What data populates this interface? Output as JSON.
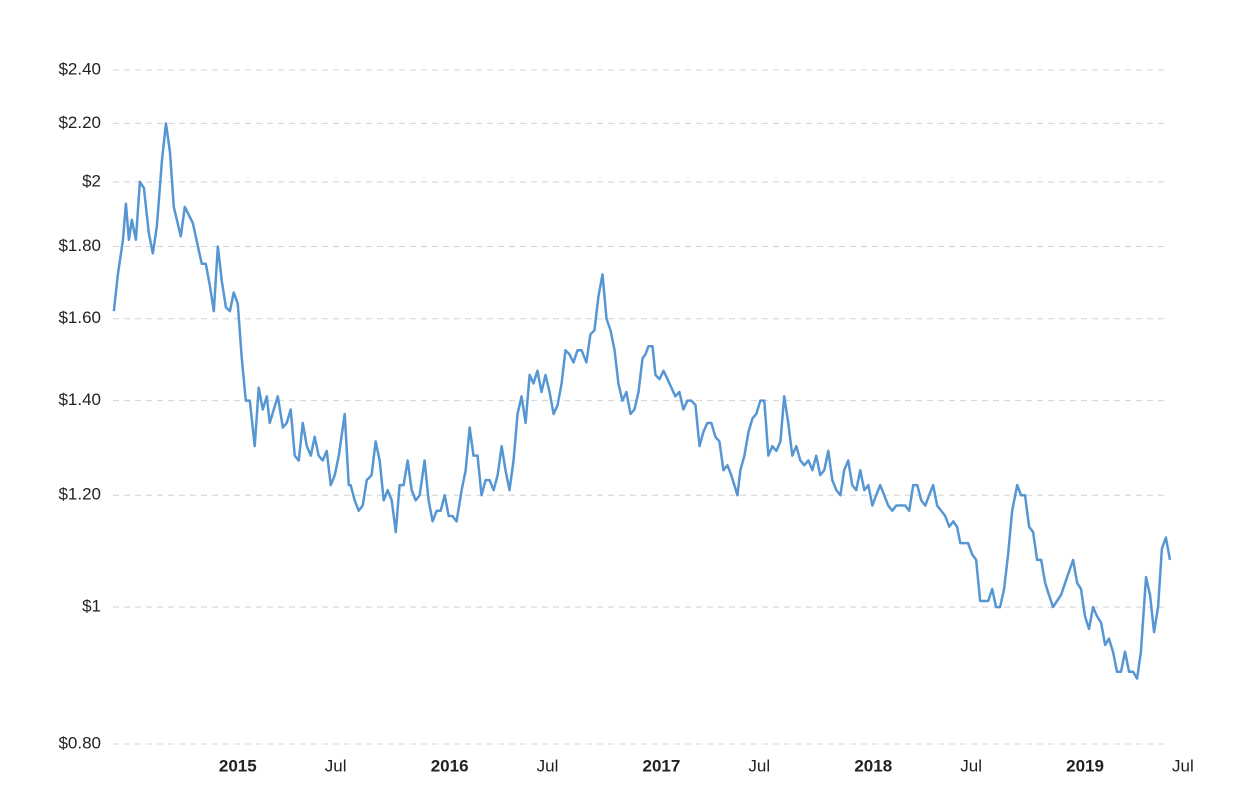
{
  "chart_data": {
    "type": "line",
    "yscale": "log",
    "grid": true,
    "ylim": [
      0.8,
      2.4
    ],
    "yticks": [
      {
        "value": 0.8,
        "label": "$0.80"
      },
      {
        "value": 1,
        "label": "$1"
      },
      {
        "value": 1.2,
        "label": "$1.20"
      },
      {
        "value": 1.4,
        "label": "$1.40"
      },
      {
        "value": 1.6,
        "label": "$1.60"
      },
      {
        "value": 1.8,
        "label": "$1.80"
      },
      {
        "value": 2,
        "label": "$2"
      },
      {
        "value": 2.2,
        "label": "$2.20"
      },
      {
        "value": 2.4,
        "label": "$2.40"
      }
    ],
    "xlim": [
      2014.5,
      2019.495
    ],
    "xticks": [
      2015,
      {
        "value": 2015.5,
        "label": "Jul"
      },
      2016,
      {
        "value": 2016.5,
        "label": "Jul"
      },
      2017,
      {
        "value": 2017.5,
        "label": "Jul"
      },
      2018,
      {
        "value": 2018.5,
        "label": "Jul"
      },
      2019,
      {
        "value": 2019.5,
        "label": "Jul"
      }
    ],
    "series": [
      {
        "color": "#5596d3",
        "x": [
          2014.504,
          2014.523,
          2014.547,
          2014.561,
          2014.575,
          2014.589,
          2014.608,
          2014.627,
          2014.646,
          2014.669,
          2014.688,
          2014.707,
          2014.731,
          2014.75,
          2014.769,
          2014.787,
          2014.82,
          2014.839,
          2014.877,
          2014.901,
          2014.919,
          2014.938,
          2014.957,
          2014.976,
          2014.995,
          2015.014,
          2015.033,
          2015.052,
          2015.07,
          2015.089,
          2015.108,
          2015.127,
          2015.146,
          2015.169,
          2015.188,
          2015.207,
          2015.226,
          2015.24,
          2015.259,
          2015.278,
          2015.302,
          2015.32,
          2015.339,
          2015.358,
          2015.377,
          2015.396,
          2015.415,
          2015.434,
          2015.452,
          2015.471,
          2015.49,
          2015.509,
          2015.528,
          2015.547,
          2015.566,
          2015.594,
          2015.613,
          2015.622,
          2015.641,
          2015.66,
          2015.679,
          2015.698,
          2015.721,
          2015.74,
          2015.759,
          2015.778,
          2015.797,
          2015.816,
          2015.835,
          2015.853,
          2015.872,
          2015.891,
          2015.91,
          2015.929,
          2015.948,
          2015.971,
          2015.99,
          2016.009,
          2016.028,
          2016.047,
          2016.066,
          2016.085,
          2016.103,
          2016.122,
          2016.146,
          2016.165,
          2016.184,
          2016.202,
          2016.221,
          2016.24,
          2016.259,
          2016.278,
          2016.297,
          2016.316,
          2016.335,
          2016.353,
          2016.372,
          2016.391,
          2016.41,
          2016.429,
          2016.448,
          2016.467,
          2016.485,
          2016.504,
          2016.523,
          2016.542,
          2016.561,
          2016.58,
          2016.599,
          2016.618,
          2016.636,
          2016.655,
          2016.674,
          2016.693,
          2016.712,
          2016.735,
          2016.754,
          2016.773,
          2016.792,
          2016.811,
          2016.83,
          2016.849,
          2016.868,
          2016.886,
          2016.905,
          2016.924,
          2016.943,
          2016.962,
          2016.981,
          2017.0,
          2017.014,
          2017.028,
          2017.047,
          2017.061,
          2017.08,
          2017.099,
          2017.118,
          2017.136,
          2017.155,
          2017.174,
          2017.193,
          2017.212,
          2017.231,
          2017.25,
          2017.269,
          2017.287,
          2017.306,
          2017.325,
          2017.344,
          2017.363,
          2017.382,
          2017.401,
          2017.419,
          2017.448,
          2017.462,
          2017.481,
          2017.5,
          2017.519,
          2017.537,
          2017.556,
          2017.575,
          2017.594,
          2017.613,
          2017.632,
          2017.651,
          2017.669,
          2017.688,
          2017.707,
          2017.726,
          2017.745,
          2017.764,
          2017.783,
          2017.802,
          2017.82,
          2017.839,
          2017.858,
          2017.877,
          2017.896,
          2017.915,
          2017.934,
          2017.952,
          2017.971,
          2017.99,
          2018.009,
          2018.028,
          2018.047,
          2018.066,
          2018.085,
          2018.103,
          2018.122,
          2018.141,
          2018.16,
          2018.179,
          2018.198,
          2018.217,
          2018.24,
          2018.259,
          2018.278,
          2018.297,
          2018.316,
          2018.335,
          2018.353,
          2018.372,
          2018.391,
          2018.41,
          2018.429,
          2018.448,
          2018.467,
          2018.485,
          2018.5,
          2018.519,
          2018.537,
          2018.556,
          2018.575,
          2018.594,
          2018.613,
          2018.632,
          2018.651,
          2018.669,
          2018.688,
          2018.707,
          2018.726,
          2018.745,
          2018.769,
          2018.787,
          2018.806,
          2018.825,
          2018.844,
          2018.863,
          2018.882,
          2018.901,
          2018.919,
          2018.938,
          2018.957,
          2018.976,
          2018.995,
          2019.014,
          2019.033,
          2019.052,
          2019.07,
          2019.089,
          2019.108,
          2019.127,
          2019.146,
          2019.165,
          2019.184,
          2019.202,
          2019.221,
          2019.24,
          2019.259,
          2019.278,
          2019.297,
          2019.316,
          2019.335,
          2019.353,
          2019.377,
          2019.396,
          2019.415,
          2019.434,
          2019.452,
          2019.471,
          2019.49
        ],
        "values": [
          1.62,
          1.72,
          1.82,
          1.93,
          1.82,
          1.88,
          1.82,
          2.0,
          1.98,
          1.84,
          1.78,
          1.86,
          2.07,
          2.2,
          2.1,
          1.92,
          1.83,
          1.92,
          1.87,
          1.8,
          1.75,
          1.75,
          1.69,
          1.62,
          1.8,
          1.7,
          1.63,
          1.62,
          1.67,
          1.64,
          1.5,
          1.4,
          1.4,
          1.3,
          1.43,
          1.38,
          1.41,
          1.35,
          1.38,
          1.41,
          1.34,
          1.35,
          1.38,
          1.28,
          1.27,
          1.35,
          1.3,
          1.28,
          1.32,
          1.28,
          1.27,
          1.29,
          1.22,
          1.24,
          1.28,
          1.37,
          1.22,
          1.22,
          1.19,
          1.17,
          1.18,
          1.23,
          1.24,
          1.31,
          1.27,
          1.19,
          1.21,
          1.19,
          1.13,
          1.22,
          1.22,
          1.27,
          1.21,
          1.19,
          1.2,
          1.27,
          1.19,
          1.15,
          1.17,
          1.17,
          1.2,
          1.16,
          1.16,
          1.15,
          1.21,
          1.25,
          1.34,
          1.28,
          1.28,
          1.2,
          1.23,
          1.23,
          1.21,
          1.24,
          1.3,
          1.25,
          1.21,
          1.27,
          1.37,
          1.41,
          1.35,
          1.46,
          1.44,
          1.47,
          1.42,
          1.46,
          1.42,
          1.37,
          1.39,
          1.44,
          1.52,
          1.51,
          1.49,
          1.52,
          1.52,
          1.49,
          1.56,
          1.57,
          1.66,
          1.72,
          1.6,
          1.57,
          1.52,
          1.44,
          1.4,
          1.42,
          1.37,
          1.38,
          1.42,
          1.5,
          1.51,
          1.53,
          1.53,
          1.46,
          1.45,
          1.47,
          1.45,
          1.43,
          1.41,
          1.42,
          1.38,
          1.4,
          1.4,
          1.39,
          1.3,
          1.33,
          1.35,
          1.35,
          1.32,
          1.31,
          1.25,
          1.26,
          1.24,
          1.2,
          1.25,
          1.28,
          1.33,
          1.36,
          1.37,
          1.4,
          1.4,
          1.28,
          1.3,
          1.29,
          1.31,
          1.41,
          1.35,
          1.28,
          1.3,
          1.27,
          1.26,
          1.27,
          1.25,
          1.28,
          1.24,
          1.25,
          1.29,
          1.23,
          1.21,
          1.2,
          1.25,
          1.27,
          1.22,
          1.21,
          1.25,
          1.21,
          1.22,
          1.18,
          1.2,
          1.22,
          1.2,
          1.18,
          1.17,
          1.18,
          1.18,
          1.18,
          1.17,
          1.22,
          1.22,
          1.19,
          1.18,
          1.2,
          1.22,
          1.18,
          1.17,
          1.16,
          1.14,
          1.15,
          1.14,
          1.11,
          1.11,
          1.11,
          1.09,
          1.08,
          1.01,
          1.01,
          1.01,
          1.03,
          1.0,
          1.0,
          1.03,
          1.09,
          1.17,
          1.22,
          1.2,
          1.2,
          1.14,
          1.13,
          1.08,
          1.08,
          1.04,
          1.02,
          1.0,
          1.01,
          1.02,
          1.04,
          1.06,
          1.08,
          1.04,
          1.03,
          0.985,
          0.965,
          1.0,
          0.985,
          0.975,
          0.94,
          0.95,
          0.93,
          0.9,
          0.9,
          0.93,
          0.9,
          0.9,
          0.89,
          0.93,
          1.05,
          1.02,
          0.96,
          1.0,
          1.1,
          1.12,
          1.08
        ]
      }
    ]
  }
}
